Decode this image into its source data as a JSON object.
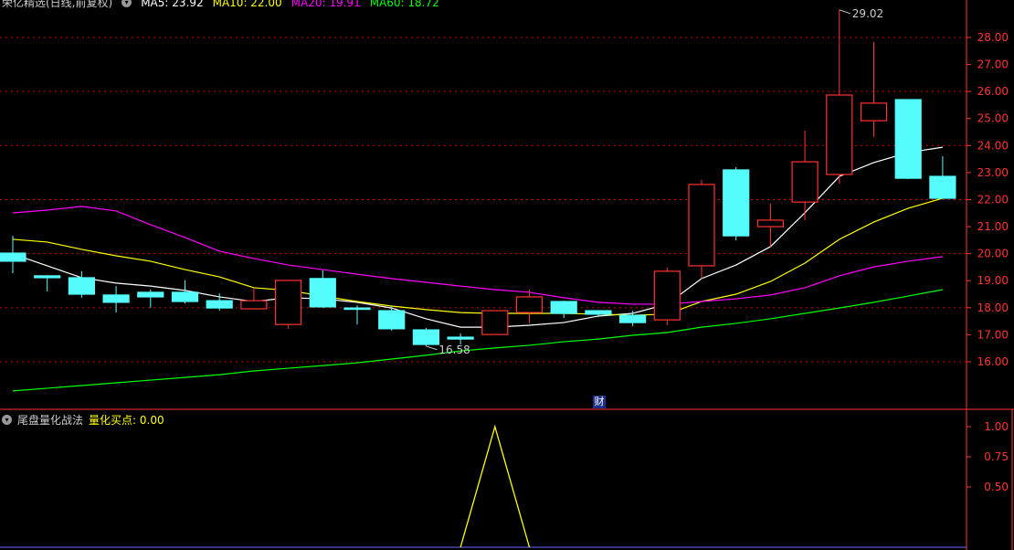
{
  "header": {
    "title": "荣亿精选(日线,前复权)",
    "ma5": "MA5: 23.92",
    "ma10": "MA10: 22.00",
    "ma20": "MA20: 19.91",
    "ma60": "MA60: 18.72"
  },
  "indicator": {
    "name": "尾盘量化战法",
    "value_label": "量化买点: 0.00"
  },
  "finance_badge": "财",
  "colors": {
    "up": "#ff3232",
    "down": "#54fcfc",
    "ma5": "#ffffff",
    "ma10": "#ffff00",
    "ma20": "#ff00ff",
    "ma60": "#00ff00",
    "axis": "#ff3232",
    "indicator": "#ffff00"
  },
  "chart_data": [
    {
      "type": "candlestick",
      "ylim": [
        15.0,
        29.4
      ],
      "y_ticks": [
        "28.00",
        "27.00",
        "26.00",
        "25.00",
        "24.00",
        "23.00",
        "22.00",
        "21.00",
        "20.00",
        "19.00",
        "18.00",
        "17.00",
        "16.00"
      ],
      "grid": "dotted every 2.00",
      "annotations": [
        {
          "label": "29.02",
          "candle": 24
        },
        {
          "label": "16.58",
          "candle": 12
        }
      ],
      "ohlc": [
        [
          20.02,
          20.66,
          19.28,
          19.72
        ],
        [
          19.18,
          19.21,
          18.6,
          19.11
        ],
        [
          19.11,
          19.35,
          18.37,
          18.5
        ],
        [
          18.47,
          18.8,
          17.82,
          18.2
        ],
        [
          18.57,
          18.67,
          18.0,
          18.4
        ],
        [
          18.57,
          19.01,
          18.16,
          18.23
        ],
        [
          18.26,
          18.53,
          17.89,
          17.99
        ],
        [
          17.96,
          18.74,
          17.96,
          18.26
        ],
        [
          17.38,
          19.01,
          17.22,
          19.01
        ],
        [
          19.08,
          19.38,
          17.99,
          18.03
        ],
        [
          17.99,
          18.09,
          17.38,
          17.96
        ],
        [
          17.89,
          18.06,
          17.15,
          17.22
        ],
        [
          17.18,
          17.25,
          16.58,
          16.64
        ],
        [
          16.91,
          17.05,
          16.64,
          16.84
        ],
        [
          17.01,
          17.89,
          17.01,
          17.89
        ],
        [
          17.82,
          18.67,
          17.42,
          18.4
        ],
        [
          18.23,
          18.26,
          17.62,
          17.79
        ],
        [
          17.89,
          17.89,
          17.66,
          17.76
        ],
        [
          17.72,
          17.89,
          17.32,
          17.45
        ],
        [
          17.55,
          19.48,
          17.35,
          19.35
        ],
        [
          19.55,
          22.73,
          19.08,
          22.56
        ],
        [
          23.1,
          23.2,
          20.49,
          20.66
        ],
        [
          21.0,
          21.85,
          20.26,
          21.24
        ],
        [
          21.91,
          24.55,
          21.24,
          23.4
        ],
        [
          22.93,
          29.02,
          22.59,
          25.87
        ],
        [
          24.92,
          27.83,
          24.32,
          25.57
        ],
        [
          25.7,
          25.7,
          22.76,
          22.79
        ],
        [
          22.86,
          23.61,
          22.05,
          22.05
        ]
      ],
      "series": [
        {
          "name": "MA5",
          "values": [
            19.99,
            19.55,
            19.11,
            18.91,
            18.8,
            18.64,
            18.4,
            18.23,
            18.37,
            18.33,
            18.2,
            17.99,
            17.59,
            17.28,
            17.28,
            17.35,
            17.45,
            17.69,
            17.79,
            18.13,
            19.08,
            19.58,
            20.26,
            21.51,
            22.86,
            23.37,
            23.74,
            23.94
          ]
        },
        {
          "name": "MA10",
          "values": [
            20.53,
            20.43,
            20.16,
            19.92,
            19.72,
            19.41,
            19.14,
            18.74,
            18.64,
            18.43,
            18.23,
            18.06,
            17.93,
            17.82,
            17.79,
            17.79,
            17.79,
            17.76,
            17.72,
            17.76,
            18.23,
            18.5,
            18.97,
            19.65,
            20.53,
            21.17,
            21.68,
            22.05
          ]
        },
        {
          "name": "MA20",
          "values": [
            21.51,
            21.61,
            21.75,
            21.58,
            21.07,
            20.6,
            20.09,
            19.82,
            19.58,
            19.41,
            19.24,
            19.08,
            18.94,
            18.8,
            18.67,
            18.57,
            18.37,
            18.2,
            18.13,
            18.13,
            18.23,
            18.33,
            18.47,
            18.74,
            19.18,
            19.51,
            19.72,
            19.89
          ]
        },
        {
          "name": "MA60",
          "values": [
            14.92,
            15.02,
            15.12,
            15.22,
            15.32,
            15.42,
            15.52,
            15.66,
            15.76,
            15.86,
            15.96,
            16.1,
            16.24,
            16.4,
            16.51,
            16.61,
            16.74,
            16.84,
            16.98,
            17.08,
            17.28,
            17.42,
            17.59,
            17.79,
            17.99,
            18.2,
            18.43,
            18.67
          ]
        }
      ]
    },
    {
      "type": "line",
      "ylim": [
        0,
        1.1
      ],
      "y_ticks": [
        "1.00",
        "0.75",
        "0.50"
      ],
      "series": [
        {
          "name": "量化买点",
          "values": [
            0,
            0,
            0,
            0,
            0,
            0,
            0,
            0,
            0,
            0,
            0,
            0,
            0,
            0,
            1,
            0,
            0,
            0,
            0,
            0,
            0,
            0,
            0,
            0,
            0,
            0,
            0,
            0
          ]
        }
      ]
    }
  ]
}
